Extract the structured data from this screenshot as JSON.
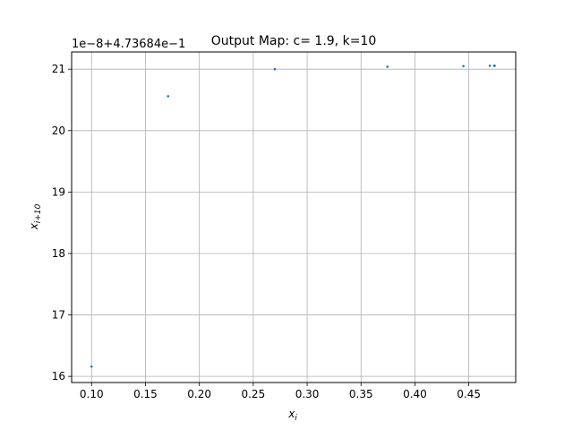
{
  "chart_data": {
    "type": "scatter",
    "title": "Output Map: c= 1.9, k=10",
    "xlabel": "x_i",
    "ylabel": "x_{i+10}",
    "offset_text": "1e−8+4.73684e−1",
    "xlim": [
      0.0815,
      0.4935
    ],
    "ylim": [
      15.9,
      21.28
    ],
    "x_ticks": [
      0.1,
      0.15,
      0.2,
      0.25,
      0.3,
      0.35,
      0.4,
      0.45
    ],
    "x_tick_labels": [
      "0.10",
      "0.15",
      "0.20",
      "0.25",
      "0.30",
      "0.35",
      "0.40",
      "0.45"
    ],
    "y_ticks": [
      16,
      17,
      18,
      19,
      20,
      21
    ],
    "y_tick_labels": [
      "16",
      "17",
      "18",
      "19",
      "20",
      "21"
    ],
    "grid": true,
    "marker_color": "#1f77b4",
    "points": [
      {
        "x": 0.1,
        "y": 16.16
      },
      {
        "x": 0.171,
        "y": 20.56
      },
      {
        "x": 0.27,
        "y": 21.0
      },
      {
        "x": 0.3745,
        "y": 21.04
      },
      {
        "x": 0.445,
        "y": 21.05
      },
      {
        "x": 0.4695,
        "y": 21.055
      },
      {
        "x": 0.4735,
        "y": 21.055
      },
      {
        "x": 0.474,
        "y": 21.055
      }
    ]
  }
}
